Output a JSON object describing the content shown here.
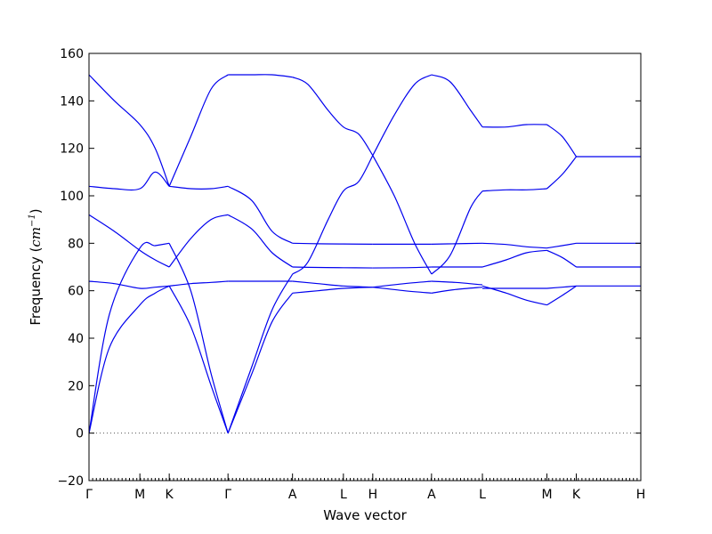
{
  "chart_data": {
    "type": "line",
    "xlabel": "Wave vector",
    "ylabel": "Frequency",
    "ylabel_unit": "cm",
    "ylabel_unit_exp": "−1",
    "ylim": [
      -20,
      160
    ],
    "yticks": [
      -20,
      0,
      20,
      40,
      60,
      80,
      100,
      120,
      140,
      160
    ],
    "high_symmetry_points": [
      {
        "label": "Γ",
        "pos": 0.0
      },
      {
        "label": "M",
        "pos": 1.0
      },
      {
        "label": "K",
        "pos": 1.577
      },
      {
        "label": "Γ",
        "pos": 2.732
      },
      {
        "label": "A",
        "pos": 4.0
      },
      {
        "label": "L",
        "pos": 5.0
      },
      {
        "label": "H",
        "pos": 5.577
      },
      {
        "label": "A",
        "pos": 6.732
      },
      {
        "label": "L",
        "pos": 7.732
      },
      {
        "label": "M",
        "pos": 9.0
      },
      {
        "label": "K",
        "pos": 9.577
      },
      {
        "label": "H",
        "pos": 10.845
      }
    ],
    "zero_line": true,
    "series": [
      {
        "x": [
          0,
          0.5,
          1.0,
          1.3,
          1.577
        ],
        "y": [
          151,
          140,
          130,
          120,
          104
        ]
      },
      {
        "x": [
          0,
          0.5,
          1.0,
          1.3,
          1.577
        ],
        "y": [
          104,
          103,
          103,
          110,
          104
        ]
      },
      {
        "x": [
          0,
          0.5,
          1.0,
          1.3,
          1.577
        ],
        "y": [
          92,
          85,
          77,
          73,
          70
        ]
      },
      {
        "x": [
          0,
          0.5,
          1.0,
          1.3,
          1.577
        ],
        "y": [
          64,
          63,
          61,
          61.5,
          62
        ]
      },
      {
        "x": [
          0,
          0.4,
          1.0,
          1.3,
          1.577
        ],
        "y": [
          0,
          50,
          78,
          79,
          80
        ]
      },
      {
        "x": [
          0,
          0.4,
          1.0,
          1.3,
          1.577
        ],
        "y": [
          0,
          36,
          54,
          59,
          62
        ]
      },
      {
        "x": [
          1.577,
          2.0,
          2.4,
          2.732
        ],
        "y": [
          104,
          103,
          103,
          104
        ]
      },
      {
        "x": [
          1.577,
          2.0,
          2.4,
          2.732
        ],
        "y": [
          104,
          125,
          145,
          151
        ]
      },
      {
        "x": [
          1.577,
          2.0,
          2.4,
          2.732
        ],
        "y": [
          70,
          82,
          90,
          92
        ]
      },
      {
        "x": [
          1.577,
          2.0,
          2.4,
          2.732
        ],
        "y": [
          62,
          63,
          63.5,
          64
        ]
      },
      {
        "x": [
          1.577,
          2.0,
          2.4,
          2.732
        ],
        "y": [
          80,
          60,
          25,
          0
        ]
      },
      {
        "x": [
          1.577,
          2.0,
          2.4,
          2.732
        ],
        "y": [
          62,
          45,
          20,
          0
        ]
      },
      {
        "x": [
          2.732,
          3.2,
          3.6,
          4.0
        ],
        "y": [
          151,
          151,
          151,
          150
        ]
      },
      {
        "x": [
          2.732,
          3.2,
          3.6,
          4.0
        ],
        "y": [
          104,
          98,
          85,
          80
        ]
      },
      {
        "x": [
          2.732,
          3.2,
          3.6,
          4.0
        ],
        "y": [
          92,
          86,
          76,
          70
        ]
      },
      {
        "x": [
          2.732,
          3.2,
          3.6,
          4.0
        ],
        "y": [
          64,
          64,
          64,
          64
        ]
      },
      {
        "x": [
          2.732,
          3.2,
          3.6,
          4.0
        ],
        "y": [
          0,
          28,
          52,
          67
        ]
      },
      {
        "x": [
          2.732,
          3.2,
          3.6,
          4.0
        ],
        "y": [
          0,
          25,
          47,
          59
        ]
      },
      {
        "x": [
          4.0,
          4.3,
          4.7,
          5.0,
          5.3,
          5.577
        ],
        "y": [
          150,
          147,
          136,
          129,
          126,
          117
        ]
      },
      {
        "x": [
          4.0,
          4.3,
          4.7,
          5.0,
          5.3,
          5.577
        ],
        "y": [
          67,
          72,
          90,
          102,
          106,
          117
        ]
      },
      {
        "x": [
          4.0,
          4.5,
          5.0,
          5.577
        ],
        "y": [
          80,
          79.8,
          79.7,
          79.6
        ]
      },
      {
        "x": [
          4.0,
          4.5,
          5.0,
          5.577
        ],
        "y": [
          70,
          69.8,
          69.7,
          69.6
        ]
      },
      {
        "x": [
          4.0,
          4.5,
          5.0,
          5.577
        ],
        "y": [
          64,
          63,
          62,
          61.5
        ]
      },
      {
        "x": [
          4.0,
          4.5,
          5.0,
          5.577
        ],
        "y": [
          59,
          60,
          61,
          61.5
        ]
      },
      {
        "x": [
          5.577,
          6.0,
          6.4,
          6.732
        ],
        "y": [
          117,
          100,
          80,
          67
        ]
      },
      {
        "x": [
          5.577,
          6.0,
          6.4,
          6.732
        ],
        "y": [
          117,
          134,
          147,
          151
        ]
      },
      {
        "x": [
          5.577,
          6.2,
          6.732
        ],
        "y": [
          79.6,
          79.6,
          79.6
        ]
      },
      {
        "x": [
          5.577,
          6.2,
          6.732
        ],
        "y": [
          69.6,
          69.7,
          70
        ]
      },
      {
        "x": [
          5.577,
          6.2,
          6.732
        ],
        "y": [
          61.5,
          63,
          64
        ]
      },
      {
        "x": [
          5.577,
          6.2,
          6.732
        ],
        "y": [
          61.5,
          60,
          59
        ]
      },
      {
        "x": [
          6.732,
          7.1,
          7.5,
          7.732
        ],
        "y": [
          151,
          148,
          136,
          129
        ]
      },
      {
        "x": [
          6.732,
          7.1,
          7.5,
          7.732
        ],
        "y": [
          67,
          75,
          95,
          102
        ]
      },
      {
        "x": [
          6.732,
          7.2,
          7.732
        ],
        "y": [
          79.6,
          79.8,
          80
        ]
      },
      {
        "x": [
          6.732,
          7.2,
          7.732
        ],
        "y": [
          70,
          70,
          70
        ]
      },
      {
        "x": [
          6.732,
          7.2,
          7.732
        ],
        "y": [
          64,
          63.5,
          62.5
        ]
      },
      {
        "x": [
          6.732,
          7.2,
          7.732
        ],
        "y": [
          59,
          60.5,
          61.5
        ]
      },
      {
        "x": [
          7.732,
          8.2,
          8.6,
          9.0
        ],
        "y": [
          129,
          129,
          130,
          130
        ]
      },
      {
        "x": [
          7.732,
          8.2,
          8.6,
          9.0
        ],
        "y": [
          102,
          102.5,
          102.5,
          103
        ]
      },
      {
        "x": [
          7.732,
          8.2,
          8.6,
          9.0
        ],
        "y": [
          80,
          79.5,
          78.5,
          78
        ]
      },
      {
        "x": [
          7.732,
          8.2,
          8.6,
          9.0
        ],
        "y": [
          70,
          73,
          76,
          77
        ]
      },
      {
        "x": [
          7.732,
          8.2,
          8.6,
          9.0
        ],
        "y": [
          61,
          61,
          61,
          61
        ]
      },
      {
        "x": [
          7.732,
          8.2,
          8.6,
          9.0
        ],
        "y": [
          62,
          59,
          56,
          54
        ]
      },
      {
        "x": [
          9.0,
          9.3,
          9.577
        ],
        "y": [
          130,
          125,
          116.5
        ]
      },
      {
        "x": [
          9.0,
          9.3,
          9.577
        ],
        "y": [
          103,
          109,
          116.5
        ]
      },
      {
        "x": [
          9.0,
          9.3,
          9.577
        ],
        "y": [
          78,
          79,
          80
        ]
      },
      {
        "x": [
          9.0,
          9.3,
          9.577
        ],
        "y": [
          77,
          74,
          70
        ]
      },
      {
        "x": [
          9.0,
          9.3,
          9.577
        ],
        "y": [
          61,
          61.5,
          62
        ]
      },
      {
        "x": [
          9.0,
          9.3,
          9.577
        ],
        "y": [
          54,
          58,
          62
        ]
      },
      {
        "x": [
          9.577,
          10.2,
          10.845
        ],
        "y": [
          116.5,
          116.5,
          116.5
        ]
      },
      {
        "x": [
          9.577,
          10.2,
          10.845
        ],
        "y": [
          80,
          80,
          80
        ]
      },
      {
        "x": [
          9.577,
          10.2,
          10.845
        ],
        "y": [
          70,
          70,
          70
        ]
      },
      {
        "x": [
          9.577,
          10.2,
          10.845
        ],
        "y": [
          62,
          62,
          62
        ]
      }
    ]
  }
}
